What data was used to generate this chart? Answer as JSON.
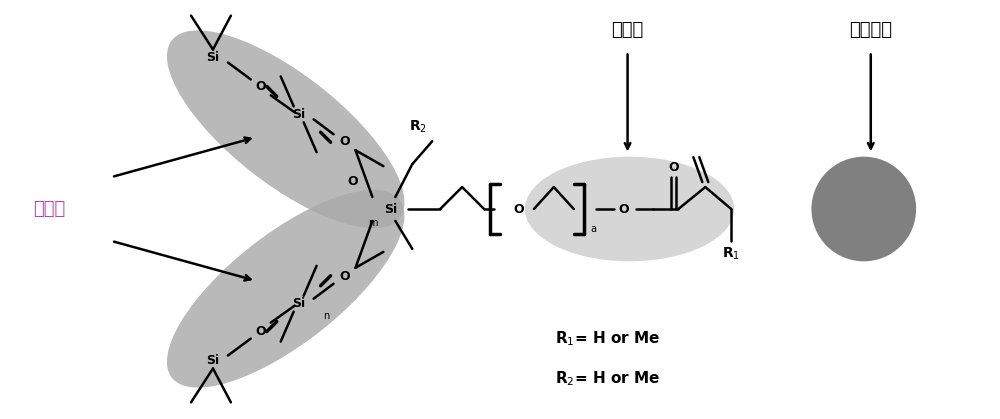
{
  "bg_color": "#ffffff",
  "ell_pdms_color": "#aaaaaa",
  "ell_peo_color": "#cccccc",
  "ell_react_color": "#6a6a6a",
  "label_hydrophobic": "疏水链",
  "label_hydrophilic": "亲水链",
  "label_reactive": "反应基团",
  "label_r1": "R$_1$= H or Me",
  "label_r2": "R$_2$= H or Me",
  "fig_width": 10.0,
  "fig_height": 4.19,
  "dpi": 100
}
